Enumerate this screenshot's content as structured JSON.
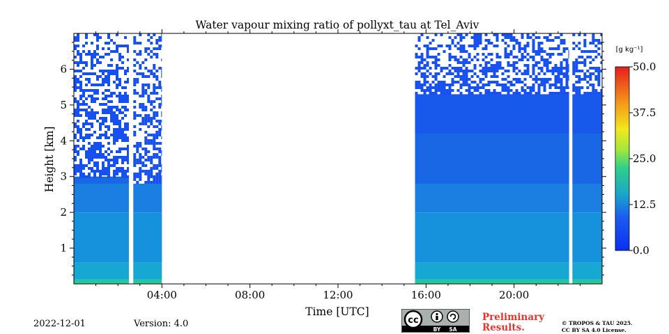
{
  "chart_data": {
    "type": "heatmap",
    "title": "Water vapour mixing ratio of pollyxt_tau at Tel_Aviv",
    "xlabel": "Time [UTC]",
    "ylabel": "Height [km]",
    "xlim_hours": [
      0,
      24
    ],
    "ylim_km": [
      0,
      7
    ],
    "x_ticks": [
      {
        "value": 4,
        "label": "04:00"
      },
      {
        "value": 8,
        "label": "08:00"
      },
      {
        "value": 12,
        "label": "12:00"
      },
      {
        "value": 16,
        "label": "16:00"
      },
      {
        "value": 20,
        "label": "20:00"
      }
    ],
    "y_ticks": [
      {
        "value": 1,
        "label": "1"
      },
      {
        "value": 2,
        "label": "2"
      },
      {
        "value": 3,
        "label": "3"
      },
      {
        "value": 4,
        "label": "4"
      },
      {
        "value": 5,
        "label": "5"
      },
      {
        "value": 6,
        "label": "6"
      }
    ],
    "data_segments_hours": [
      [
        0,
        2.5
      ],
      [
        2.7,
        4.0
      ],
      [
        15.5,
        22.5
      ],
      [
        22.65,
        24
      ]
    ],
    "colorbar": {
      "unit": "[g kg⁻¹]",
      "range": [
        0,
        50
      ],
      "ticks": [
        "50.0",
        "37.5",
        "25.0",
        "12.5",
        "0.0"
      ],
      "colormap": "jet"
    },
    "grid": false
  },
  "footer": {
    "date": "2022-12-01",
    "version": "Version: 4.0",
    "preliminary_line1": "Preliminary",
    "preliminary_line2": "Results.",
    "copyright_line1": "© TROPOS & TAU 2025.",
    "copyright_line2": "CC BY SA 4.0 License.",
    "license_badge": {
      "cc": "cc",
      "by": "BY",
      "sa": "SA"
    }
  }
}
